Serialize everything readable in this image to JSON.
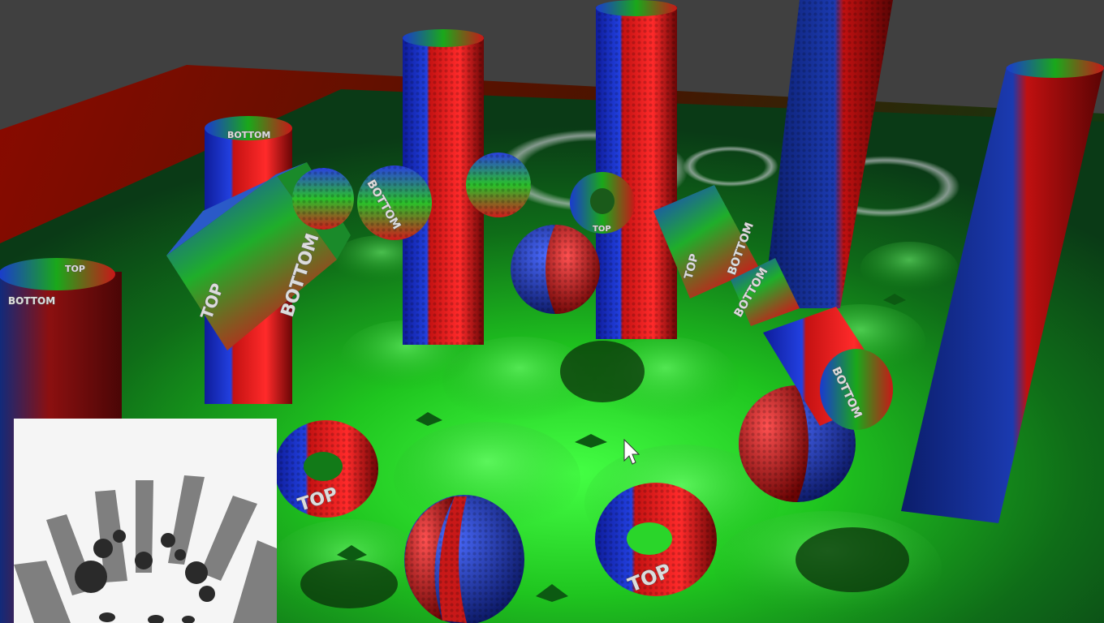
{
  "scene": {
    "labels": {
      "top": "TOP",
      "bottom": "BOTTOM"
    },
    "colors": {
      "background": "#3d3d3d",
      "floor": "#19a019",
      "floor_lit": "#39ff39",
      "wall": "#6b0000",
      "stripe_red": "#d51515",
      "stripe_blue": "#1530c8",
      "shadow_map_bg": "#f5f5f5"
    }
  },
  "shadow_map": {
    "description_icon": "shadow-map-icon"
  },
  "cursor": {
    "icon": "mouse-pointer-icon"
  }
}
